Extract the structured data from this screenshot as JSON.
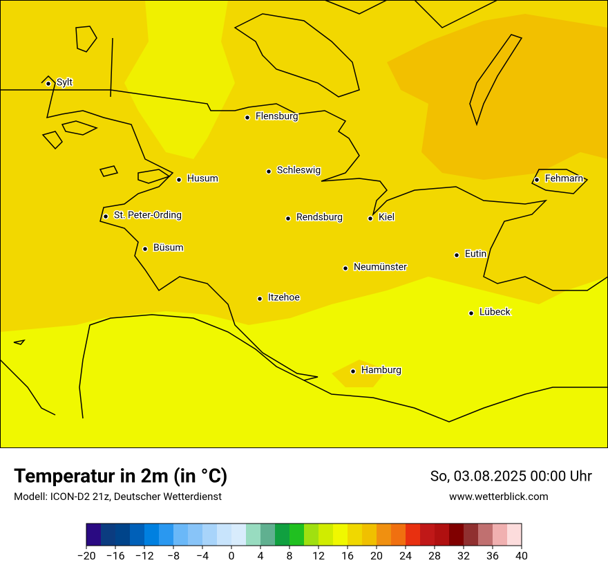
{
  "map": {
    "cities": [
      {
        "name": "Sylt"
      },
      {
        "name": "Flensburg"
      },
      {
        "name": "Schleswig"
      },
      {
        "name": "Husum"
      },
      {
        "name": "Fehmarn"
      },
      {
        "name": "St. Peter-Ording"
      },
      {
        "name": "Rendsburg"
      },
      {
        "name": "Kiel"
      },
      {
        "name": "Büsum"
      },
      {
        "name": "Eutin"
      },
      {
        "name": "Neumünster"
      },
      {
        "name": "Itzehoe"
      },
      {
        "name": "Lübeck"
      },
      {
        "name": "Hamburg"
      }
    ]
  },
  "footer": {
    "title": "Temperatur in 2m (in °C)",
    "model": "Modell: ICON-D2 21z, Deutscher Wetterdienst",
    "datetime": "So, 03.08.2025 00:00 Uhr",
    "website": "www.wetterblick.com"
  },
  "colorbar": {
    "lim": [
      -20,
      40
    ],
    "ticks": [
      {
        "value": -20,
        "label": "−20"
      },
      {
        "value": -16,
        "label": "−16"
      },
      {
        "value": -12,
        "label": "−12"
      },
      {
        "value": -8,
        "label": "−8"
      },
      {
        "value": -4,
        "label": "−4"
      },
      0,
      4,
      8,
      12,
      16,
      20,
      24,
      28,
      32,
      36,
      40
    ],
    "colors": [
      "#2a0a82",
      "#0b3c80",
      "#00448a",
      "#0060b8",
      "#0080e0",
      "#2a98f0",
      "#6ab8f8",
      "#88c4f8",
      "#a8d4fa",
      "#c8e4fc",
      "#d8ecfc",
      "#98dcc0",
      "#60b090",
      "#10a040",
      "#20c020",
      "#a0e010",
      "#d0ec00",
      "#f0f800",
      "#f0d800",
      "#f0c000",
      "#f09010",
      "#f07010",
      "#e83010",
      "#c01818",
      "#b01010",
      "#800000",
      "#903030",
      "#c07070",
      "#f0b0b0",
      "#fcdcdc"
    ]
  }
}
